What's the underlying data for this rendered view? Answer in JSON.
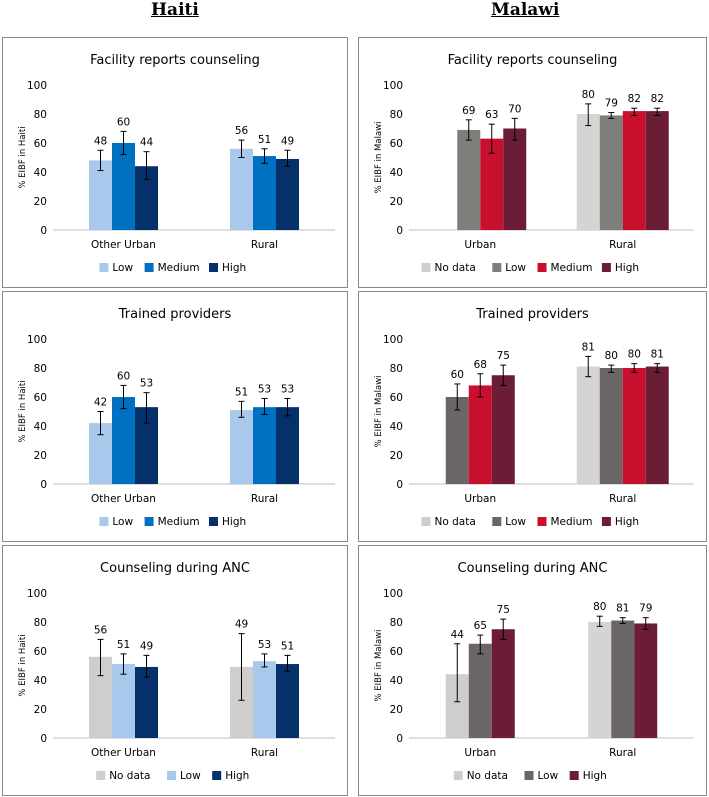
{
  "header": {
    "left_title": "Haiti",
    "right_title": "Malawi"
  },
  "colors": {
    "No data": "#d0cecc",
    "haiti_Low": "#a8c8ec",
    "haiti_Medium": "#0070c0",
    "haiti_High": "#06306a",
    "malawi_Low_fac": "#7f7e7b",
    "malawi_Low": "#6b6566",
    "malawi_Medium": "#c8102e",
    "malawi_High": "#6b1d35",
    "malawi_NoData_rural": "#d6d4d2"
  },
  "chart_data": [
    {
      "type": "bar",
      "title": "Facility reports counseling",
      "ylabel": "% EIBF in Haiti",
      "ylim": [
        0,
        100
      ],
      "yticks": [
        0,
        20,
        40,
        60,
        80,
        100
      ],
      "categories": [
        "Other Urban",
        "Rural"
      ],
      "legend": [
        {
          "name": "Low",
          "color": "#a8c8ec"
        },
        {
          "name": "Medium",
          "color": "#0070c0"
        },
        {
          "name": "High",
          "color": "#06306a"
        }
      ],
      "groups": [
        {
          "category": "Other Urban",
          "bars": [
            {
              "series": "Low",
              "value": 48,
              "label": "48",
              "err": [
                41,
                55
              ],
              "color": "#a8c8ec"
            },
            {
              "series": "Medium",
              "value": 60,
              "label": "60",
              "err": [
                52,
                68
              ],
              "color": "#0070c0"
            },
            {
              "series": "High",
              "value": 44,
              "label": "44",
              "err": [
                35,
                54
              ],
              "color": "#06306a"
            }
          ]
        },
        {
          "category": "Rural",
          "bars": [
            {
              "series": "Low",
              "value": 56,
              "label": "56",
              "err": [
                50,
                62
              ],
              "color": "#a8c8ec"
            },
            {
              "series": "Medium",
              "value": 51,
              "label": "51",
              "err": [
                46,
                56
              ],
              "color": "#0070c0"
            },
            {
              "series": "High",
              "value": 49,
              "label": "49",
              "err": [
                44,
                55
              ],
              "color": "#06306a"
            }
          ]
        }
      ]
    },
    {
      "type": "bar",
      "title": "Facility reports counseling",
      "ylabel": "% EIBF in Malawi",
      "ylim": [
        0,
        100
      ],
      "yticks": [
        0,
        20,
        40,
        60,
        80,
        100
      ],
      "categories": [
        "Urban",
        "Rural"
      ],
      "legend": [
        {
          "name": "No data",
          "color": "#d0cecc"
        },
        {
          "name": "Low",
          "color": "#7f7e7b"
        },
        {
          "name": "Medium",
          "color": "#c8102e"
        },
        {
          "name": "High",
          "color": "#6b1d35"
        }
      ],
      "groups": [
        {
          "category": "Urban",
          "bars": [
            {
              "series": "No data",
              "value": null,
              "label": "",
              "err": null,
              "color": "#d0cecc"
            },
            {
              "series": "Low",
              "value": 69,
              "label": "69",
              "err": [
                62,
                76
              ],
              "color": "#7f7e7b"
            },
            {
              "series": "Medium",
              "value": 63,
              "label": "63",
              "err": [
                53,
                73
              ],
              "color": "#c8102e"
            },
            {
              "series": "High",
              "value": 70,
              "label": "70",
              "err": [
                62,
                77
              ],
              "color": "#6b1d35"
            }
          ]
        },
        {
          "category": "Rural",
          "bars": [
            {
              "series": "No data",
              "value": 80,
              "label": "80",
              "err": [
                72,
                87
              ],
              "color": "#d6d4d2"
            },
            {
              "series": "Low",
              "value": 79,
              "label": "79",
              "err": [
                77,
                81
              ],
              "color": "#7f7e7b"
            },
            {
              "series": "Medium",
              "value": 82,
              "label": "82",
              "err": [
                79,
                84
              ],
              "color": "#c8102e"
            },
            {
              "series": "High",
              "value": 82,
              "label": "82",
              "err": [
                79,
                84
              ],
              "color": "#6b1d35"
            }
          ]
        }
      ]
    },
    {
      "type": "bar",
      "title": "Trained providers",
      "ylabel": "% EIBF in Haiti",
      "ylim": [
        0,
        100
      ],
      "yticks": [
        0,
        20,
        40,
        60,
        80,
        100
      ],
      "categories": [
        "Other Urban",
        "Rural"
      ],
      "legend": [
        {
          "name": "Low",
          "color": "#a8c8ec"
        },
        {
          "name": "Medium",
          "color": "#0070c0"
        },
        {
          "name": "High",
          "color": "#06306a"
        }
      ],
      "groups": [
        {
          "category": "Other Urban",
          "bars": [
            {
              "series": "Low",
              "value": 42,
              "label": "42",
              "err": [
                34,
                50
              ],
              "color": "#a8c8ec"
            },
            {
              "series": "Medium",
              "value": 60,
              "label": "60",
              "err": [
                52,
                68
              ],
              "color": "#0070c0"
            },
            {
              "series": "High",
              "value": 53,
              "label": "53",
              "err": [
                42,
                63
              ],
              "color": "#06306a"
            }
          ]
        },
        {
          "category": "Rural",
          "bars": [
            {
              "series": "Low",
              "value": 51,
              "label": "51",
              "err": [
                46,
                57
              ],
              "color": "#a8c8ec"
            },
            {
              "series": "Medium",
              "value": 53,
              "label": "53",
              "err": [
                48,
                59
              ],
              "color": "#0070c0"
            },
            {
              "series": "High",
              "value": 53,
              "label": "53",
              "err": [
                47,
                59
              ],
              "color": "#06306a"
            }
          ]
        }
      ]
    },
    {
      "type": "bar",
      "title": "Trained providers",
      "ylabel": "% EIBF in Malawi",
      "ylim": [
        0,
        100
      ],
      "yticks": [
        0,
        20,
        40,
        60,
        80,
        100
      ],
      "categories": [
        "Urban",
        "Rural"
      ],
      "legend": [
        {
          "name": "No data",
          "color": "#d0cecc"
        },
        {
          "name": "Low",
          "color": "#6b6566"
        },
        {
          "name": "Medium",
          "color": "#c8102e"
        },
        {
          "name": "High",
          "color": "#6b1d35"
        }
      ],
      "groups": [
        {
          "category": "Urban",
          "bars": [
            {
              "series": "Low",
              "value": 60,
              "label": "60",
              "err": [
                51,
                69
              ],
              "color": "#6b6566"
            },
            {
              "series": "Medium",
              "value": 68,
              "label": "68",
              "err": [
                60,
                76
              ],
              "color": "#c8102e"
            },
            {
              "series": "High",
              "value": 75,
              "label": "75",
              "err": [
                68,
                82
              ],
              "color": "#6b1d35"
            }
          ]
        },
        {
          "category": "Rural",
          "bars": [
            {
              "series": "No data",
              "value": 81,
              "label": "81",
              "err": [
                74,
                88
              ],
              "color": "#d6d4d2"
            },
            {
              "series": "Low",
              "value": 80,
              "label": "80",
              "err": [
                77,
                82
              ],
              "color": "#6b6566"
            },
            {
              "series": "Medium",
              "value": 80,
              "label": "80",
              "err": [
                77,
                83
              ],
              "color": "#c8102e"
            },
            {
              "series": "High",
              "value": 81,
              "label": "81",
              "err": [
                77,
                83
              ],
              "color": "#6b1d35"
            }
          ]
        }
      ]
    },
    {
      "type": "bar",
      "title": "Counseling during ANC",
      "ylabel": "% EIBF in Haiti",
      "ylim": [
        0,
        100
      ],
      "yticks": [
        0,
        20,
        40,
        60,
        80,
        100
      ],
      "categories": [
        "Other Urban",
        "Rural"
      ],
      "legend": [
        {
          "name": "No data",
          "color": "#d0cecc"
        },
        {
          "name": "Low",
          "color": "#a8c8ec"
        },
        {
          "name": "High",
          "color": "#06306a"
        }
      ],
      "groups": [
        {
          "category": "Other Urban",
          "bars": [
            {
              "series": "No data",
              "value": 56,
              "label": "56",
              "err": [
                43,
                68
              ],
              "color": "#d0cecc"
            },
            {
              "series": "Low",
              "value": 51,
              "label": "51",
              "err": [
                44,
                58
              ],
              "color": "#a8c8ec"
            },
            {
              "series": "High",
              "value": 49,
              "label": "49",
              "err": [
                42,
                57
              ],
              "color": "#06306a"
            }
          ]
        },
        {
          "category": "Rural",
          "bars": [
            {
              "series": "No data",
              "value": 49,
              "label": "49",
              "err": [
                26,
                72
              ],
              "color": "#d0cecc"
            },
            {
              "series": "Low",
              "value": 53,
              "label": "53",
              "err": [
                49,
                58
              ],
              "color": "#a8c8ec"
            },
            {
              "series": "High",
              "value": 51,
              "label": "51",
              "err": [
                46,
                57
              ],
              "color": "#06306a"
            }
          ]
        }
      ]
    },
    {
      "type": "bar",
      "title": "Counseling during ANC",
      "ylabel": "% EIBF in Malawi",
      "ylim": [
        0,
        100
      ],
      "yticks": [
        0,
        20,
        40,
        60,
        80,
        100
      ],
      "categories": [
        "Urban",
        "Rural"
      ],
      "legend": [
        {
          "name": "No data",
          "color": "#d0cecc"
        },
        {
          "name": "Low",
          "color": "#6b6566"
        },
        {
          "name": "High",
          "color": "#6b1d35"
        }
      ],
      "groups": [
        {
          "category": "Urban",
          "bars": [
            {
              "series": "No data",
              "value": 44,
              "label": "44",
              "err": [
                25,
                65
              ],
              "color": "#d0cecc"
            },
            {
              "series": "Low",
              "value": 65,
              "label": "65",
              "err": [
                58,
                71
              ],
              "color": "#6b6566"
            },
            {
              "series": "High",
              "value": 75,
              "label": "75",
              "err": [
                68,
                82
              ],
              "color": "#6b1d35"
            }
          ]
        },
        {
          "category": "Rural",
          "bars": [
            {
              "series": "No data",
              "value": 80,
              "label": "80",
              "err": [
                77,
                84
              ],
              "color": "#d6d4d2"
            },
            {
              "series": "Low",
              "value": 81,
              "label": "81",
              "err": [
                79,
                83
              ],
              "color": "#6b6566"
            },
            {
              "series": "High",
              "value": 79,
              "label": "79",
              "err": [
                75,
                83
              ],
              "color": "#6b1d35"
            }
          ]
        }
      ]
    }
  ]
}
